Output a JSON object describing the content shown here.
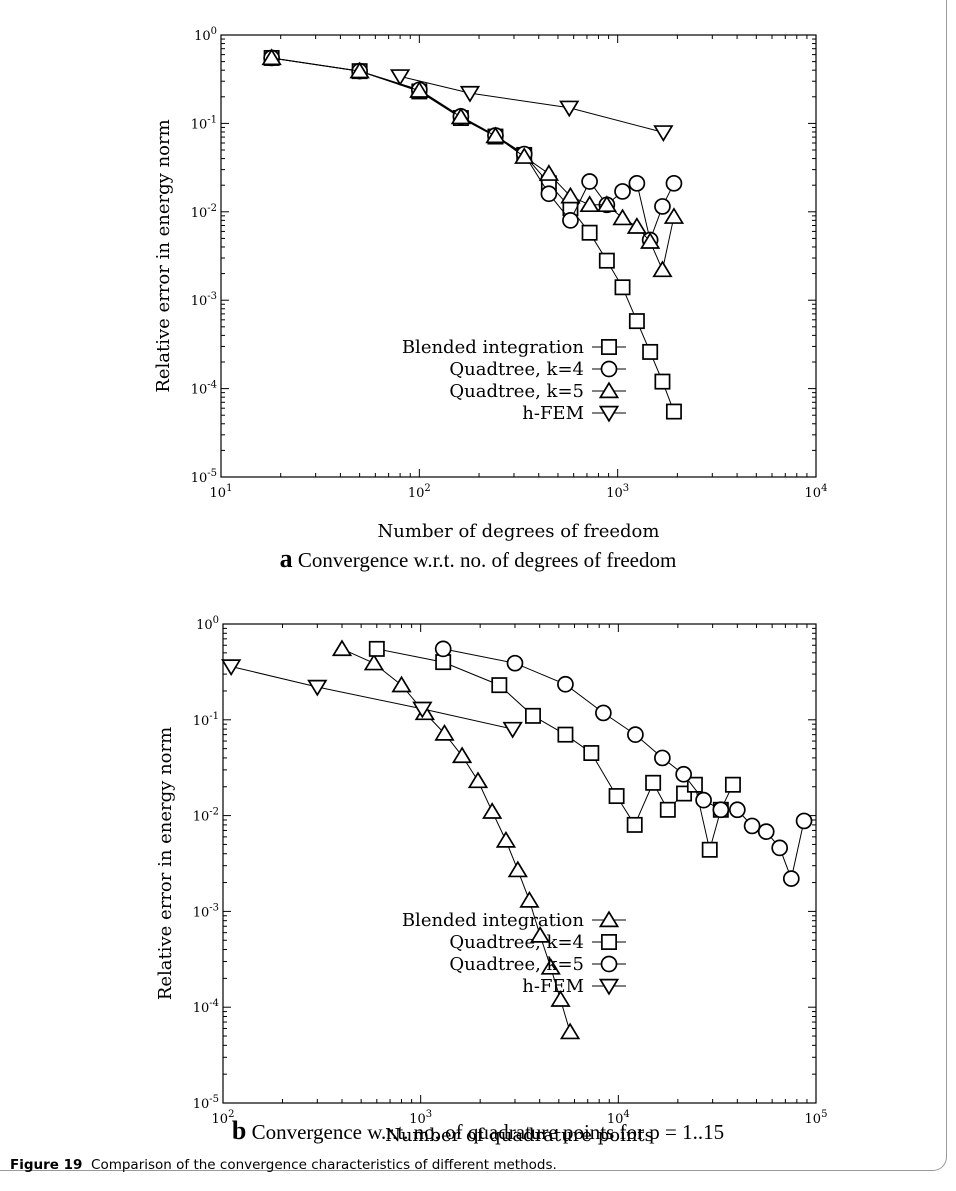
{
  "figure_caption": {
    "label": "Figure 19",
    "text": "Comparison of the convergence characteristics of different methods."
  },
  "panels": {
    "a": {
      "letter": "a",
      "caption": "Convergence w.r.t. no. of degrees of freedom"
    },
    "b": {
      "letter": "b",
      "caption": "Convergence w.r.t. no. of quadrature points for p = 1..15"
    }
  },
  "chart_data": [
    {
      "type": "line",
      "xlabel": "Number of degrees of freedom",
      "ylabel": "Relative error in energy norm",
      "xscale": "log",
      "yscale": "log",
      "xlim": [
        10,
        10000
      ],
      "ylim": [
        1e-05,
        1
      ],
      "xticks": [
        "10^1",
        "10^2",
        "10^3",
        "10^4"
      ],
      "yticks": [
        "10^-5",
        "10^-4",
        "10^-3",
        "10^-2",
        "10^-1",
        "10^0"
      ],
      "legend_position": "lower-left",
      "series": [
        {
          "name": "Blended integration",
          "marker": "square",
          "x": [
            18,
            50,
            100,
            162,
            242,
            338,
            450,
            578,
            722,
            882,
            1058,
            1250,
            1458,
            1682,
            1922
          ],
          "y": [
            0.55,
            0.39,
            0.23,
            0.115,
            0.071,
            0.044,
            0.021,
            0.011,
            0.0058,
            0.0028,
            0.0014,
            0.00058,
            0.00026,
            0.00012,
            5.5e-05
          ]
        },
        {
          "name": "Quadtree, k=4",
          "marker": "circle",
          "x": [
            18,
            50,
            100,
            162,
            242,
            338,
            450,
            578,
            722,
            882,
            1058,
            1250,
            1458,
            1682,
            1922
          ],
          "y": [
            0.55,
            0.39,
            0.24,
            0.12,
            0.073,
            0.045,
            0.016,
            0.008,
            0.022,
            0.012,
            0.017,
            0.021,
            0.0048,
            0.0115,
            0.021
          ]
        },
        {
          "name": "Quadtree, k=5",
          "marker": "triangle-up",
          "x": [
            18,
            50,
            100,
            162,
            242,
            338,
            450,
            578,
            722,
            882,
            1058,
            1250,
            1458,
            1682,
            1922
          ],
          "y": [
            0.55,
            0.39,
            0.235,
            0.118,
            0.072,
            0.042,
            0.027,
            0.015,
            0.012,
            0.012,
            0.0085,
            0.0068,
            0.0046,
            0.0022,
            0.0088
          ]
        },
        {
          "name": "h-FEM",
          "marker": "triangle-down",
          "x": [
            80,
            180,
            570,
            1700
          ],
          "y": [
            0.34,
            0.22,
            0.15,
            0.079
          ]
        }
      ]
    },
    {
      "type": "line",
      "xlabel": "Number of quadrature points",
      "ylabel": "Relative error in energy norm",
      "xscale": "log",
      "yscale": "log",
      "xlim": [
        100,
        100000
      ],
      "ylim": [
        1e-05,
        1
      ],
      "xticks": [
        "10^2",
        "10^3",
        "10^4",
        "10^5"
      ],
      "yticks": [
        "10^-5",
        "10^-4",
        "10^-3",
        "10^-2",
        "10^-1",
        "10^0"
      ],
      "legend_position": "lower-left",
      "series": [
        {
          "name": "Blended integration",
          "marker": "triangle-up",
          "x": [
            400,
            580,
            800,
            1050,
            1320,
            1620,
            1950,
            2300,
            2700,
            3100,
            3550,
            4020,
            4550,
            5100,
            5700
          ],
          "y": [
            0.55,
            0.39,
            0.23,
            0.118,
            0.072,
            0.042,
            0.023,
            0.011,
            0.0055,
            0.0027,
            0.0013,
            0.00056,
            0.00026,
            0.00012,
            5.5e-05
          ]
        },
        {
          "name": "Quadtree, k=4",
          "marker": "square",
          "x": [
            600,
            1300,
            2500,
            3700,
            5400,
            7300,
            9800,
            12100,
            15000,
            17800,
            21500,
            24400,
            29000,
            33000,
            38000
          ],
          "y": [
            0.55,
            0.4,
            0.23,
            0.11,
            0.07,
            0.045,
            0.016,
            0.008,
            0.022,
            0.0115,
            0.017,
            0.021,
            0.0044,
            0.0115,
            0.021
          ]
        },
        {
          "name": "Quadtree, k=5",
          "marker": "circle",
          "x": [
            1300,
            3000,
            5400,
            8400,
            12200,
            16700,
            21400,
            27000,
            33000,
            40000,
            47500,
            56000,
            65500,
            75000,
            87000
          ],
          "y": [
            0.55,
            0.39,
            0.235,
            0.118,
            0.07,
            0.04,
            0.027,
            0.0145,
            0.0115,
            0.0115,
            0.0078,
            0.0068,
            0.0046,
            0.0022,
            0.0088
          ]
        },
        {
          "name": "h-FEM",
          "marker": "triangle-down",
          "x": [
            110,
            300,
            1020,
            2920
          ],
          "y": [
            0.36,
            0.22,
            0.13,
            0.08
          ]
        }
      ]
    }
  ]
}
